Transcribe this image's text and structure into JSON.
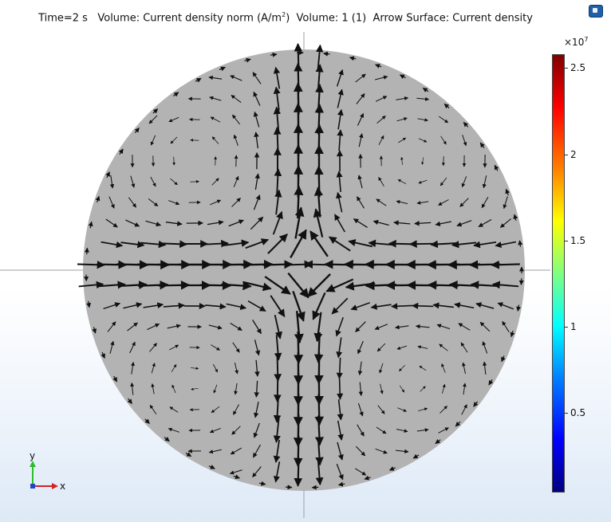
{
  "header": {
    "time_label": "Time=2 s",
    "volume_label": "Volume: Current density norm (A/m",
    "volume_unit_exp": "2",
    "volume_close": ")",
    "volume2_label": "Volume: 1 (1)",
    "arrow_label": "Arrow Surface: Current density"
  },
  "colorbar": {
    "multiplier_base": "×10",
    "multiplier_exp": "7",
    "ticks": [
      {
        "label": "2.5",
        "value": 2.5
      },
      {
        "label": "2",
        "value": 2
      },
      {
        "label": "1.5",
        "value": 1.5
      },
      {
        "label": "1",
        "value": 1
      },
      {
        "label": "0.5",
        "value": 0.5
      }
    ],
    "range": [
      0.04,
      2.58
    ],
    "colormap": "rainbow"
  },
  "axes_triad": {
    "y_label": "y",
    "x_label": "x",
    "y_color": "#2bbf2b",
    "x_color": "#d22222",
    "z_color": "#2244cc"
  },
  "colors": {
    "domain_fill": "#b3b3b3",
    "arrow": "#111111",
    "crosshair": "#9aa0a8"
  },
  "toolbar": {
    "icon": "view-settings-icon"
  }
}
